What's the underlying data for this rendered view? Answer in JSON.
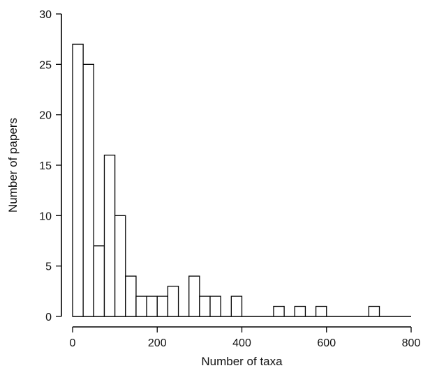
{
  "chart_data": {
    "type": "bar",
    "title": "",
    "xlabel": "Number of taxa",
    "ylabel": "Number of papers",
    "xlim": [
      0,
      800
    ],
    "ylim": [
      0,
      30
    ],
    "xticks": [
      0,
      200,
      400,
      600,
      800
    ],
    "yticks": [
      0,
      5,
      10,
      15,
      20,
      25,
      30
    ],
    "grid": false,
    "bin_width": 25,
    "bins": [
      {
        "x0": 0,
        "x1": 25,
        "count": 27
      },
      {
        "x0": 25,
        "x1": 50,
        "count": 25
      },
      {
        "x0": 50,
        "x1": 75,
        "count": 7
      },
      {
        "x0": 75,
        "x1": 100,
        "count": 16
      },
      {
        "x0": 100,
        "x1": 125,
        "count": 10
      },
      {
        "x0": 125,
        "x1": 150,
        "count": 4
      },
      {
        "x0": 150,
        "x1": 175,
        "count": 2
      },
      {
        "x0": 175,
        "x1": 200,
        "count": 2
      },
      {
        "x0": 200,
        "x1": 225,
        "count": 2
      },
      {
        "x0": 225,
        "x1": 250,
        "count": 3
      },
      {
        "x0": 250,
        "x1": 275,
        "count": 0
      },
      {
        "x0": 275,
        "x1": 300,
        "count": 4
      },
      {
        "x0": 300,
        "x1": 325,
        "count": 2
      },
      {
        "x0": 325,
        "x1": 350,
        "count": 2
      },
      {
        "x0": 350,
        "x1": 375,
        "count": 0
      },
      {
        "x0": 375,
        "x1": 400,
        "count": 2
      },
      {
        "x0": 400,
        "x1": 425,
        "count": 0
      },
      {
        "x0": 425,
        "x1": 450,
        "count": 0
      },
      {
        "x0": 450,
        "x1": 475,
        "count": 0
      },
      {
        "x0": 475,
        "x1": 500,
        "count": 1
      },
      {
        "x0": 500,
        "x1": 525,
        "count": 0
      },
      {
        "x0": 525,
        "x1": 550,
        "count": 1
      },
      {
        "x0": 550,
        "x1": 575,
        "count": 0
      },
      {
        "x0": 575,
        "x1": 600,
        "count": 1
      },
      {
        "x0": 600,
        "x1": 625,
        "count": 0
      },
      {
        "x0": 625,
        "x1": 650,
        "count": 0
      },
      {
        "x0": 650,
        "x1": 675,
        "count": 0
      },
      {
        "x0": 675,
        "x1": 700,
        "count": 0
      },
      {
        "x0": 700,
        "x1": 725,
        "count": 1
      },
      {
        "x0": 725,
        "x1": 750,
        "count": 0
      },
      {
        "x0": 750,
        "x1": 775,
        "count": 0
      },
      {
        "x0": 775,
        "x1": 800,
        "count": 0
      }
    ]
  }
}
